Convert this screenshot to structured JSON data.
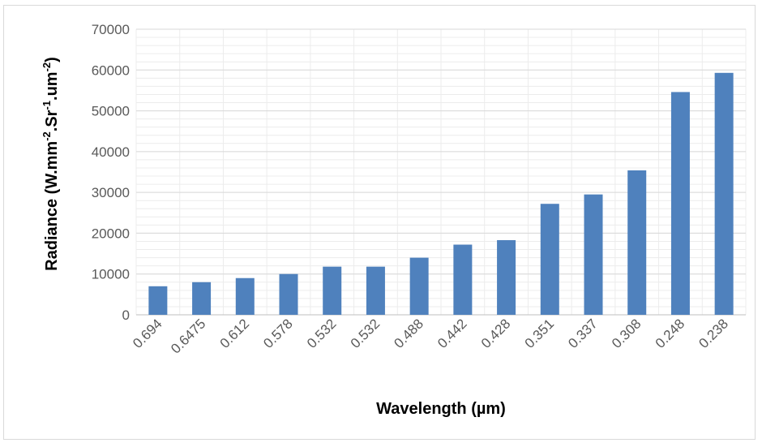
{
  "chart_data": {
    "type": "bar",
    "title": "",
    "xlabel": "Wavelength (µm)",
    "ylabel_parts": [
      "Radiance (W.mm",
      "-2",
      ".Sr",
      "-1",
      ".um",
      "-2",
      ")"
    ],
    "categories": [
      "0.694",
      "0.6475",
      "0.612",
      "0.578",
      "0.532",
      "0.532",
      "0.488",
      "0.442",
      "0.428",
      "0.351",
      "0.337",
      "0.308",
      "0.248",
      "0.238"
    ],
    "values": [
      7000,
      8000,
      9000,
      10000,
      11800,
      11800,
      14000,
      17200,
      18300,
      27200,
      29500,
      35400,
      54600,
      59300
    ],
    "ylim": [
      0,
      70000
    ],
    "yticks": [
      0,
      10000,
      20000,
      30000,
      40000,
      50000,
      60000,
      70000
    ],
    "ytick_labels": [
      "0",
      "10000",
      "20000",
      "30000",
      "40000",
      "50000",
      "60000",
      "70000"
    ],
    "grid": true,
    "minor_grid": true,
    "legend": "none",
    "bar_color": "#4f81bd",
    "grid_color": "#d9d9d9"
  }
}
